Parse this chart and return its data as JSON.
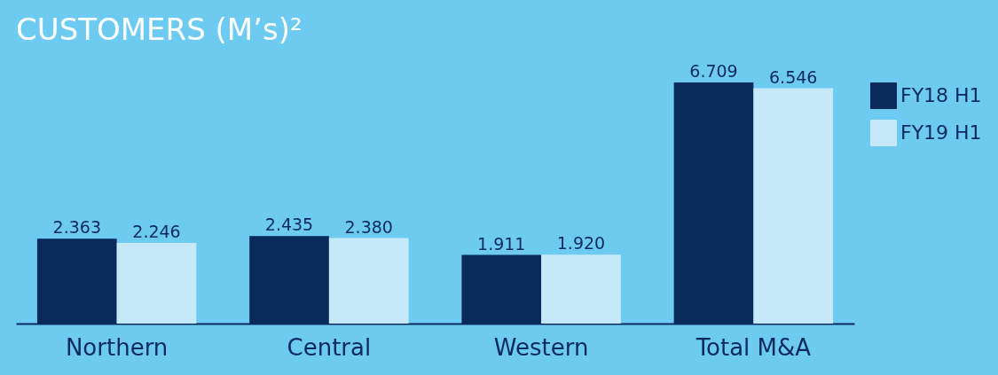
{
  "chart_data": {
    "type": "bar",
    "title": "CUSTOMERS (M’s)²",
    "categories": [
      "Northern",
      "Central",
      "Western",
      "Total M&A"
    ],
    "series": [
      {
        "name": "FY18 H1",
        "color": "#0b2a5c",
        "values": [
          2.363,
          2.435,
          1.911,
          6.709
        ],
        "value_labels": [
          "2.363",
          "2.435",
          "1.911",
          "6.709"
        ]
      },
      {
        "name": "FY19 H1",
        "color": "#c6e9f9",
        "values": [
          2.246,
          2.38,
          1.92,
          6.546
        ],
        "value_labels": [
          "2.246",
          "2.380",
          "1.920",
          "6.546"
        ]
      }
    ],
    "legend": "right",
    "grid": false
  }
}
